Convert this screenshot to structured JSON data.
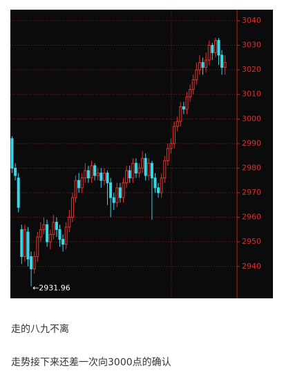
{
  "chart_data": {
    "type": "candlestick",
    "open": [
      2992,
      2980,
      2976,
      2955,
      2944,
      2954,
      2944,
      2939,
      2944,
      2952,
      2955,
      2957,
      2950,
      2953,
      2958,
      2955,
      2951,
      2949,
      2956,
      2960,
      2968,
      2975,
      2972,
      2976,
      2979,
      2976,
      2981,
      2977,
      2978,
      2975,
      2978,
      2974,
      2968,
      2966,
      2972,
      2968,
      2974,
      2979,
      2976,
      2982,
      2978,
      2980,
      2984,
      2977,
      2982,
      2976,
      2972,
      2970,
      2976,
      2983,
      2988,
      2990,
      2997,
      2999,
      3005,
      3004,
      3009,
      3012,
      3016,
      3020,
      3023,
      3021,
      3024,
      3030,
      3027,
      3032,
      3026,
      3021
    ],
    "high": [
      2993,
      2982,
      2978,
      2957,
      2957,
      2956,
      2946,
      2946,
      2954,
      2958,
      2960,
      2959,
      2955,
      2961,
      2960,
      2957,
      2953,
      2958,
      2963,
      2970,
      2977,
      2978,
      2978,
      2982,
      2981,
      2983,
      2982,
      2980,
      2980,
      2980,
      2979,
      2976,
      2970,
      2974,
      2974,
      2976,
      2981,
      2981,
      2984,
      2984,
      2982,
      2987,
      2986,
      2984,
      2983,
      2978,
      2974,
      2978,
      2985,
      2990,
      2992,
      2999,
      3001,
      3007,
      3007,
      3011,
      3014,
      3018,
      3023,
      3026,
      3025,
      3027,
      3032,
      3031,
      3033,
      3033,
      3028,
      3026
    ],
    "low": [
      2978,
      2975,
      2962,
      2941,
      2942,
      2940,
      2931.96,
      2937,
      2942,
      2950,
      2953,
      2948,
      2947,
      2951,
      2952,
      2948,
      2946,
      2947,
      2954,
      2958,
      2966,
      2970,
      2970,
      2974,
      2974,
      2974,
      2975,
      2975,
      2972,
      2973,
      2965,
      2960,
      2963,
      2964,
      2966,
      2966,
      2972,
      2974,
      2974,
      2976,
      2976,
      2978,
      2975,
      2975,
      2959,
      2970,
      2968,
      2968,
      2974,
      2981,
      2986,
      2988,
      2995,
      2997,
      3002,
      3002,
      3007,
      3010,
      3014,
      3018,
      3018,
      3019,
      3022,
      3024,
      3025,
      3022,
      3018,
      3018
    ],
    "close": [
      2980,
      2977,
      2964,
      2944,
      2955,
      2943,
      2939,
      2944,
      2952,
      2955,
      2957,
      2950,
      2953,
      2958,
      2955,
      2951,
      2949,
      2956,
      2960,
      2968,
      2975,
      2972,
      2976,
      2979,
      2976,
      2981,
      2977,
      2978,
      2975,
      2978,
      2974,
      2968,
      2966,
      2972,
      2968,
      2974,
      2979,
      2976,
      2982,
      2978,
      2980,
      2984,
      2977,
      2982,
      2976,
      2972,
      2970,
      2976,
      2983,
      2988,
      2990,
      2997,
      2999,
      3005,
      3004,
      3009,
      3012,
      3016,
      3020,
      3023,
      3021,
      3024,
      3030,
      3027,
      3032,
      3026,
      3021,
      3023
    ],
    "up_color": "#e8332f",
    "down_color": "#38d8e6",
    "ylim": [
      2927,
      3044.5
    ],
    "yticks": [
      2940,
      2950,
      2960,
      2970,
      2980,
      2990,
      3000,
      3010,
      3020,
      3030,
      3040
    ],
    "grid": true,
    "annotations": [
      {
        "text": "←2931.96",
        "index": 6
      }
    ]
  },
  "notes": [
    "走的八九不离",
    "走势接下来还差一次向3000点的确认"
  ]
}
